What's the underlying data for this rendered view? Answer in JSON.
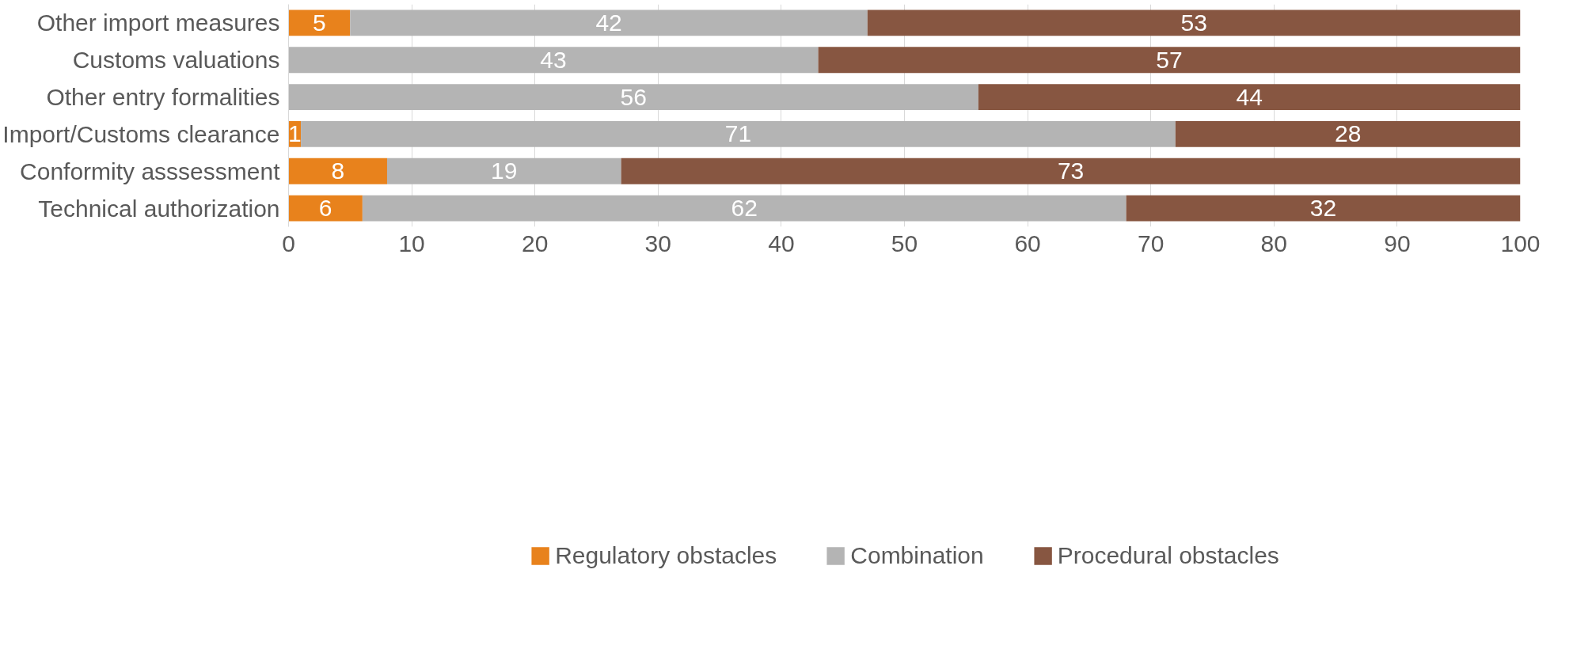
{
  "chart_data": {
    "type": "bar",
    "orientation": "horizontal",
    "stacked": true,
    "categories": [
      "Other import measures",
      "Customs valuations",
      "Other entry formalities",
      "Import/Customs clearance",
      "Conformity asssessment",
      "Technical authorization"
    ],
    "series": [
      {
        "name": "Regulatory obstacles",
        "color": "#e8821c",
        "values": [
          5,
          0,
          0,
          1,
          8,
          6
        ],
        "value_labels": [
          "5",
          null,
          null,
          "1",
          "8",
          "6"
        ]
      },
      {
        "name": "Combination",
        "color": "#b4b4b4",
        "values": [
          42,
          43,
          56,
          71,
          19,
          62
        ],
        "value_labels": [
          "42",
          "43",
          "56",
          "71",
          "19",
          "62"
        ]
      },
      {
        "name": "Procedural obstacles",
        "color": "#875641",
        "values": [
          53,
          57,
          44,
          28,
          73,
          32
        ],
        "value_labels": [
          "53",
          "57",
          "44",
          "28",
          "73",
          "32"
        ]
      }
    ],
    "xlim": [
      0,
      100
    ],
    "xticks": [
      0,
      10,
      20,
      30,
      40,
      50,
      60,
      70,
      80,
      90,
      100
    ],
    "grid": "x",
    "legend": "bottom"
  }
}
